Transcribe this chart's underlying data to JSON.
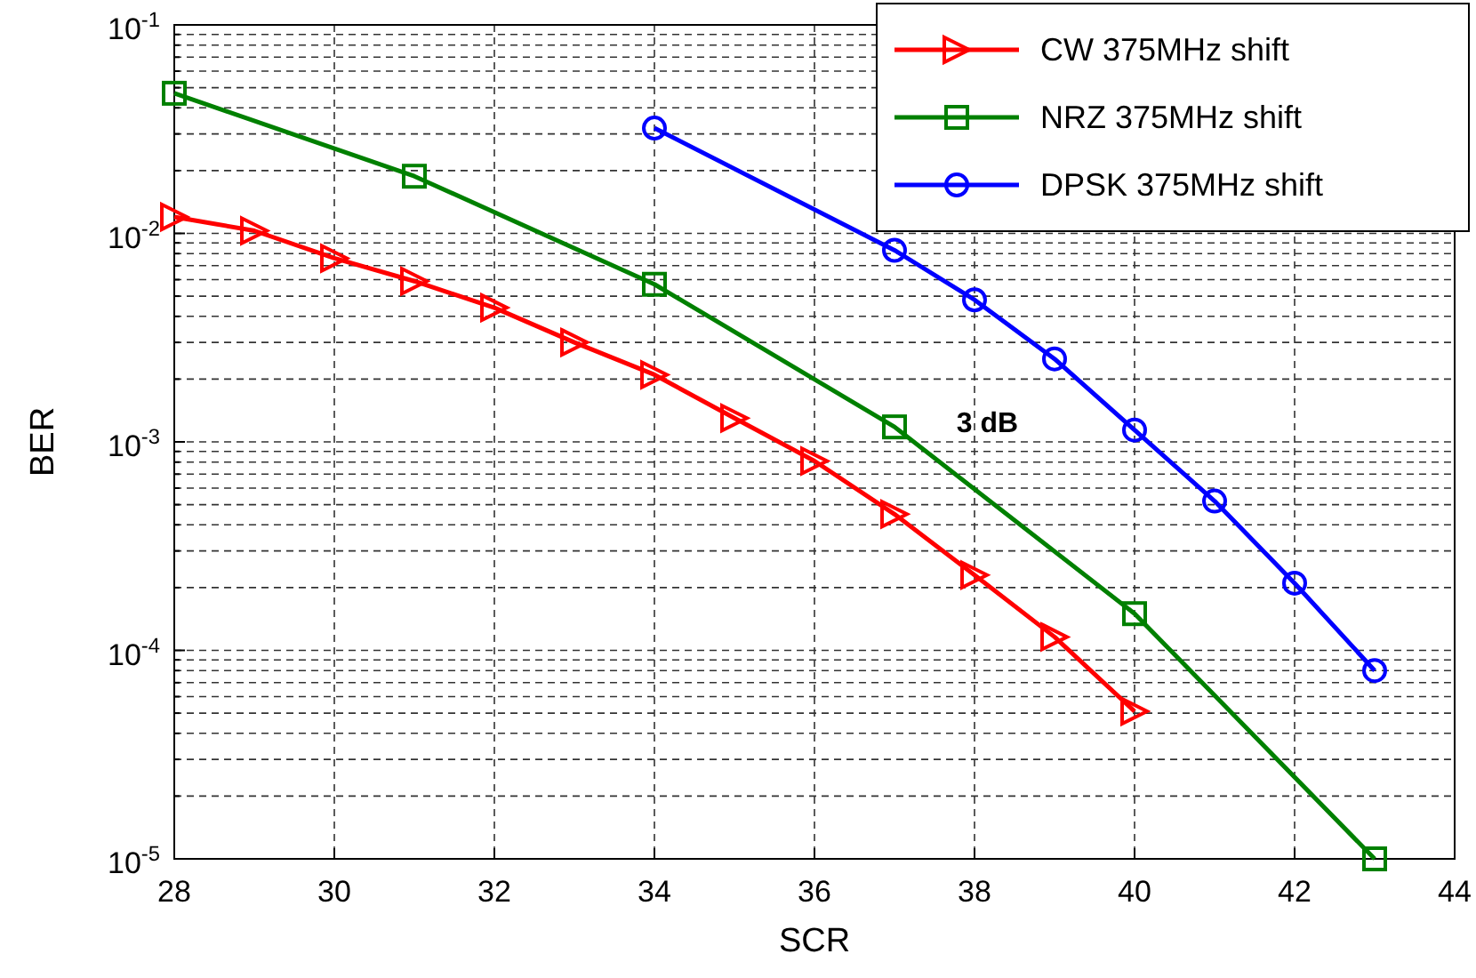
{
  "chart_data": {
    "type": "line",
    "xlabel": "SCR",
    "ylabel": "BER",
    "log": "y",
    "grid": true,
    "legend": "top right",
    "line_style": "solid",
    "xlim": [
      28,
      44
    ],
    "xticks": [
      28,
      30,
      32,
      34,
      36,
      38,
      40,
      42,
      44
    ],
    "ylim": [
      1e-05,
      0.1
    ],
    "yticks": [
      {
        "value": 1e-05,
        "label": "10$^{-5}$"
      },
      {
        "value": 2e-05,
        "label": null
      },
      {
        "value": 3e-05,
        "label": null
      },
      {
        "value": 4e-05,
        "label": null
      },
      {
        "value": 5e-05,
        "label": null
      },
      {
        "value": 6e-05,
        "label": null
      },
      {
        "value": 7e-05,
        "label": null
      },
      {
        "value": 8e-05,
        "label": null
      },
      {
        "value": 9e-05,
        "label": null
      },
      {
        "value": 0.0001,
        "label": "10$^{-4}$"
      },
      {
        "value": 0.0002,
        "label": null
      },
      {
        "value": 0.0003,
        "label": null
      },
      {
        "value": 0.0004,
        "label": null
      },
      {
        "value": 0.0005,
        "label": null
      },
      {
        "value": 0.0006,
        "label": null
      },
      {
        "value": 0.0007,
        "label": null
      },
      {
        "value": 0.0008,
        "label": null
      },
      {
        "value": 0.0009,
        "label": null
      },
      {
        "value": 0.001,
        "label": "10$^{-3}$"
      },
      {
        "value": 0.002,
        "label": null
      },
      {
        "value": 0.003,
        "label": null
      },
      {
        "value": 0.004,
        "label": null
      },
      {
        "value": 0.005,
        "label": null
      },
      {
        "value": 0.006,
        "label": null
      },
      {
        "value": 0.007,
        "label": null
      },
      {
        "value": 0.008,
        "label": null
      },
      {
        "value": 0.009,
        "label": null
      },
      {
        "value": 0.01,
        "label": "10$^{-2}$"
      },
      {
        "value": 0.02,
        "label": null
      },
      {
        "value": 0.03,
        "label": null
      },
      {
        "value": 0.04,
        "label": null
      },
      {
        "value": 0.05,
        "label": null
      },
      {
        "value": 0.06,
        "label": null
      },
      {
        "value": 0.07,
        "label": null
      },
      {
        "value": 0.08,
        "label": null
      },
      {
        "value": 0.09,
        "label": null
      },
      {
        "value": 0.1,
        "label": "10$^{-1}$"
      }
    ],
    "annotations": [
      "3 dB"
    ],
    "series": [
      {
        "name": "CW 375MHz shift",
        "color": "#ff0000",
        "marker": "triangle",
        "x": [
          28,
          29,
          30,
          31,
          32,
          33,
          34,
          35,
          36,
          37,
          38,
          39,
          40
        ],
        "values": [
          0.012,
          0.0103,
          0.0076,
          0.0059,
          0.0044,
          0.003,
          0.0021,
          0.0013,
          0.00081,
          0.00045,
          0.00023,
          0.000116,
          5.1e-05
        ]
      },
      {
        "name": "NRZ 375MHz shift",
        "color": "#008000",
        "marker": "square",
        "x": [
          28,
          31,
          34,
          37,
          40,
          43
        ],
        "values": [
          0.047,
          0.0188,
          0.0057,
          0.00118,
          0.00015,
          1e-05
        ]
      },
      {
        "name": "DPSK 375MHz shift",
        "color": "#0000ff",
        "marker": "circle",
        "x": [
          34,
          37,
          38,
          39,
          40,
          41,
          42,
          43
        ],
        "values": [
          0.032,
          0.0083,
          0.0048,
          0.0025,
          0.00114,
          0.00052,
          0.00021,
          8e-05
        ]
      }
    ]
  }
}
